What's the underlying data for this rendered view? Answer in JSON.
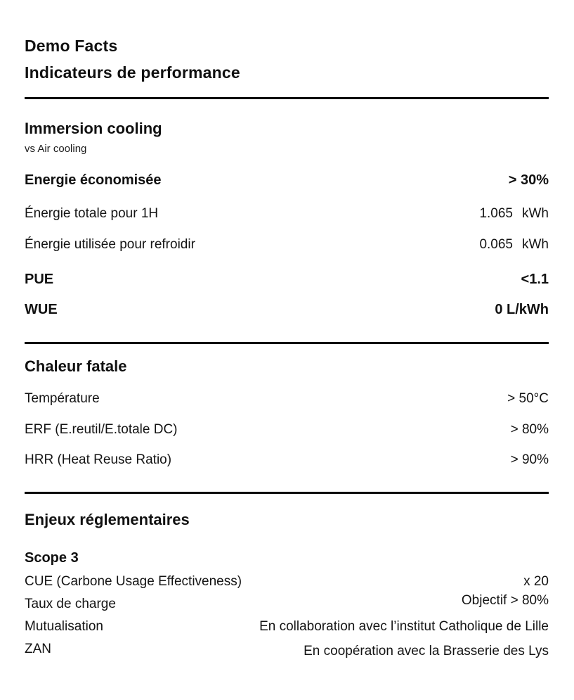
{
  "header": {
    "title_line1": "Demo Facts",
    "title_line2": "Indicateurs de performance"
  },
  "sections": [
    {
      "heading": "Immersion cooling",
      "subheading": "vs Air cooling",
      "rows": [
        {
          "label": "Energie économisée",
          "value": "> 30%"
        },
        {
          "label": "Énergie totale pour 1H",
          "value": "1.065",
          "unit": "kWh"
        },
        {
          "label": "Énergie utilisée pour refroidir",
          "value": "0.065",
          "unit": "kWh"
        },
        {
          "label": "PUE",
          "value": "<1.1"
        },
        {
          "label": "WUE",
          "value": "0 L/kWh"
        }
      ]
    },
    {
      "heading": "Chaleur fatale",
      "rows": [
        {
          "label": "Température",
          "value": "> 50°C"
        },
        {
          "label": "ERF (E.reutil/E.totale DC)",
          "value": "> 80%"
        },
        {
          "label": "HRR (Heat Reuse Ratio)",
          "value": "> 90%"
        }
      ]
    },
    {
      "heading": "Enjeux réglementaires",
      "subheading": "Scope 3",
      "rows": [
        {
          "label": "CUE (Carbone Usage Effectiveness)",
          "value": "x 20"
        },
        {
          "label": "Taux de charge",
          "value": "Objectif > 80%"
        },
        {
          "label": "Mutualisation",
          "value": "En collaboration avec l’institut Catholique de Lille"
        },
        {
          "label": "ZAN",
          "value": "En coopération avec la Brasserie des Lys"
        }
      ]
    }
  ],
  "colors": {
    "background": "#ffffff",
    "text": "#141414",
    "rule": "#0a0a0a"
  }
}
